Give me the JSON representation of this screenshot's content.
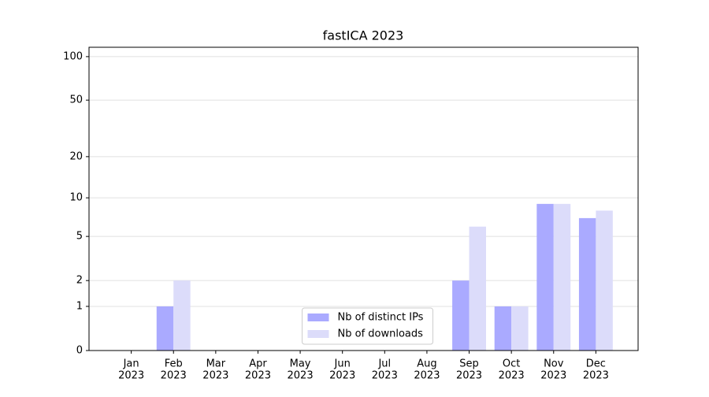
{
  "chart_data": {
    "type": "bar",
    "title": "fastICA 2023",
    "categories": [
      [
        "Jan",
        "2023"
      ],
      [
        "Feb",
        "2023"
      ],
      [
        "Mar",
        "2023"
      ],
      [
        "Apr",
        "2023"
      ],
      [
        "May",
        "2023"
      ],
      [
        "Jun",
        "2023"
      ],
      [
        "Jul",
        "2023"
      ],
      [
        "Aug",
        "2023"
      ],
      [
        "Sep",
        "2023"
      ],
      [
        "Oct",
        "2023"
      ],
      [
        "Nov",
        "2023"
      ],
      [
        "Dec",
        "2023"
      ]
    ],
    "series": [
      {
        "name": "Nb of distinct IPs",
        "color": "#aaaaff",
        "values": [
          0,
          1,
          0,
          0,
          0,
          0,
          0,
          0,
          2,
          1,
          9,
          7
        ]
      },
      {
        "name": "Nb of downloads",
        "color": "#dcdcfa",
        "values": [
          0,
          2,
          0,
          0,
          0,
          0,
          0,
          0,
          6,
          1,
          9,
          8
        ]
      }
    ],
    "yscale": "log1p",
    "ylim": [
      0,
      116
    ],
    "yticks": [
      0,
      1,
      2,
      5,
      10,
      20,
      50,
      100
    ],
    "grid": true,
    "legend": "lower center"
  }
}
